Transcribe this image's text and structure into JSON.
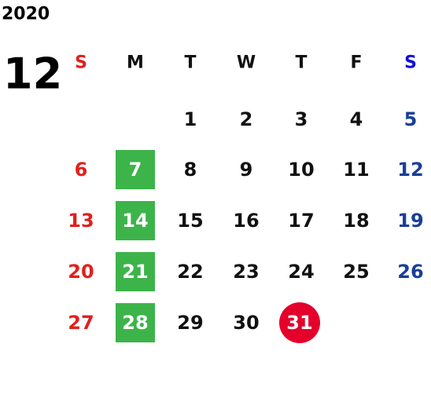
{
  "year": "2020",
  "month": "12",
  "weekdays": [
    "S",
    "M",
    "T",
    "W",
    "T",
    "F",
    "S"
  ],
  "weeks": [
    [
      null,
      null,
      1,
      2,
      3,
      4,
      5
    ],
    [
      6,
      7,
      8,
      9,
      10,
      11,
      12
    ],
    [
      13,
      14,
      15,
      16,
      17,
      18,
      19
    ],
    [
      20,
      21,
      22,
      23,
      24,
      25,
      26
    ],
    [
      27,
      28,
      29,
      30,
      31,
      null,
      null
    ]
  ]
}
